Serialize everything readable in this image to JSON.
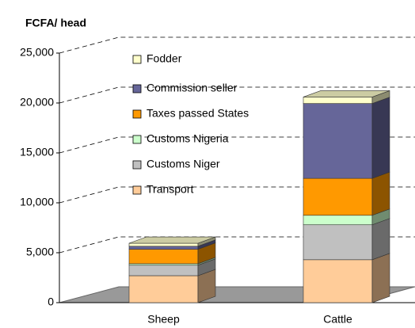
{
  "chart_data": {
    "type": "bar3d_stacked",
    "y_axis_label": "FCFA/ head",
    "categories": [
      "Sheep",
      "Cattle"
    ],
    "series": [
      {
        "name": "Transport",
        "color": "#ffcc99",
        "values": [
          2700,
          4300
        ]
      },
      {
        "name": "Customs Niger",
        "color": "#c0c0c0",
        "values": [
          1050,
          3500
        ]
      },
      {
        "name": "Customs Nigeria",
        "color": "#ccffcc",
        "values": [
          150,
          950
        ]
      },
      {
        "name": "Taxes passed States",
        "color": "#ff9900",
        "values": [
          1450,
          3700
        ]
      },
      {
        "name": "Commission seller",
        "color": "#666699",
        "values": [
          300,
          7500
        ]
      },
      {
        "name": "Fodder",
        "color": "#ffffcc",
        "values": [
          300,
          650
        ]
      }
    ],
    "ylim": [
      0,
      25000
    ],
    "yticks": [
      0,
      {
        "value": 5000,
        "label": "5,000"
      },
      {
        "value": 10000,
        "label": "10,000"
      },
      {
        "value": 15000,
        "label": "15,000"
      },
      {
        "value": 20000,
        "label": "20,000"
      },
      {
        "value": 25000,
        "label": "25,000"
      }
    ],
    "grid": true
  }
}
